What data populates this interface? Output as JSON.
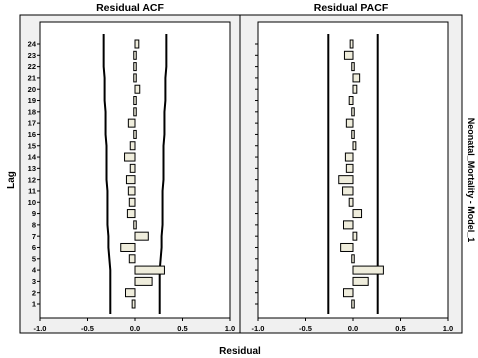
{
  "figure": {
    "xlabel": "Residual",
    "ylabel": "Lag",
    "side_label": "Neonatal_Mortality - Model_1"
  },
  "colors": {
    "bar_fill": "#efeddc",
    "bar_stroke": "#000000",
    "panel_bg": "#f0f0f0",
    "plot_bg": "#ffffff",
    "line": "#000000"
  },
  "chart_data": [
    {
      "type": "bar",
      "orientation": "horizontal",
      "title": "Residual ACF",
      "xlim": [
        -1.0,
        1.0
      ],
      "x_ticks": [
        "-1.0",
        "-0.5",
        "0.0",
        "0.5",
        "1.0"
      ],
      "lags": [
        1,
        2,
        3,
        4,
        5,
        6,
        7,
        8,
        9,
        10,
        11,
        12,
        13,
        14,
        15,
        16,
        17,
        18,
        19,
        20,
        21,
        22,
        23,
        24
      ],
      "values": [
        -0.03,
        -0.1,
        0.18,
        0.31,
        -0.06,
        -0.15,
        0.14,
        -0.01,
        -0.08,
        -0.06,
        -0.07,
        -0.09,
        -0.05,
        -0.11,
        -0.05,
        -0.01,
        -0.07,
        -0.01,
        -0.01,
        0.05,
        -0.01,
        -0.01,
        -0.01,
        0.04
      ],
      "confidence_upper": [
        0.26,
        0.26,
        0.26,
        0.26,
        0.27,
        0.28,
        0.28,
        0.29,
        0.29,
        0.29,
        0.29,
        0.3,
        0.3,
        0.3,
        0.3,
        0.31,
        0.31,
        0.31,
        0.32,
        0.32,
        0.32,
        0.33,
        0.33,
        0.33
      ],
      "confidence_lower": [
        -0.26,
        -0.26,
        -0.26,
        -0.26,
        -0.27,
        -0.28,
        -0.28,
        -0.29,
        -0.29,
        -0.29,
        -0.29,
        -0.3,
        -0.3,
        -0.3,
        -0.3,
        -0.31,
        -0.31,
        -0.31,
        -0.32,
        -0.32,
        -0.32,
        -0.33,
        -0.33,
        -0.33
      ]
    },
    {
      "type": "bar",
      "orientation": "horizontal",
      "title": "Residual PACF",
      "xlim": [
        -1.0,
        1.0
      ],
      "x_ticks": [
        "-1.0",
        "-0.5",
        "0.0",
        "0.5",
        "1.0"
      ],
      "lags": [
        1,
        2,
        3,
        4,
        5,
        6,
        7,
        8,
        9,
        10,
        11,
        12,
        13,
        14,
        15,
        16,
        17,
        18,
        19,
        20,
        21,
        22,
        23,
        24
      ],
      "values": [
        -0.02,
        -0.1,
        0.16,
        0.32,
        -0.02,
        -0.13,
        0.04,
        -0.1,
        0.09,
        -0.04,
        -0.11,
        -0.15,
        -0.07,
        -0.08,
        0.03,
        0.02,
        -0.07,
        -0.01,
        -0.04,
        0.04,
        0.07,
        -0.01,
        -0.09,
        -0.03
      ],
      "confidence_upper": [
        0.26,
        0.26,
        0.26,
        0.26,
        0.26,
        0.26,
        0.26,
        0.26,
        0.26,
        0.26,
        0.26,
        0.26,
        0.26,
        0.26,
        0.26,
        0.26,
        0.26,
        0.26,
        0.26,
        0.26,
        0.26,
        0.26,
        0.26,
        0.26
      ],
      "confidence_lower": [
        -0.26,
        -0.26,
        -0.26,
        -0.26,
        -0.26,
        -0.26,
        -0.26,
        -0.26,
        -0.26,
        -0.26,
        -0.26,
        -0.26,
        -0.26,
        -0.26,
        -0.26,
        -0.26,
        -0.26,
        -0.26,
        -0.26,
        -0.26,
        -0.26,
        -0.26,
        -0.26,
        -0.26
      ]
    }
  ]
}
